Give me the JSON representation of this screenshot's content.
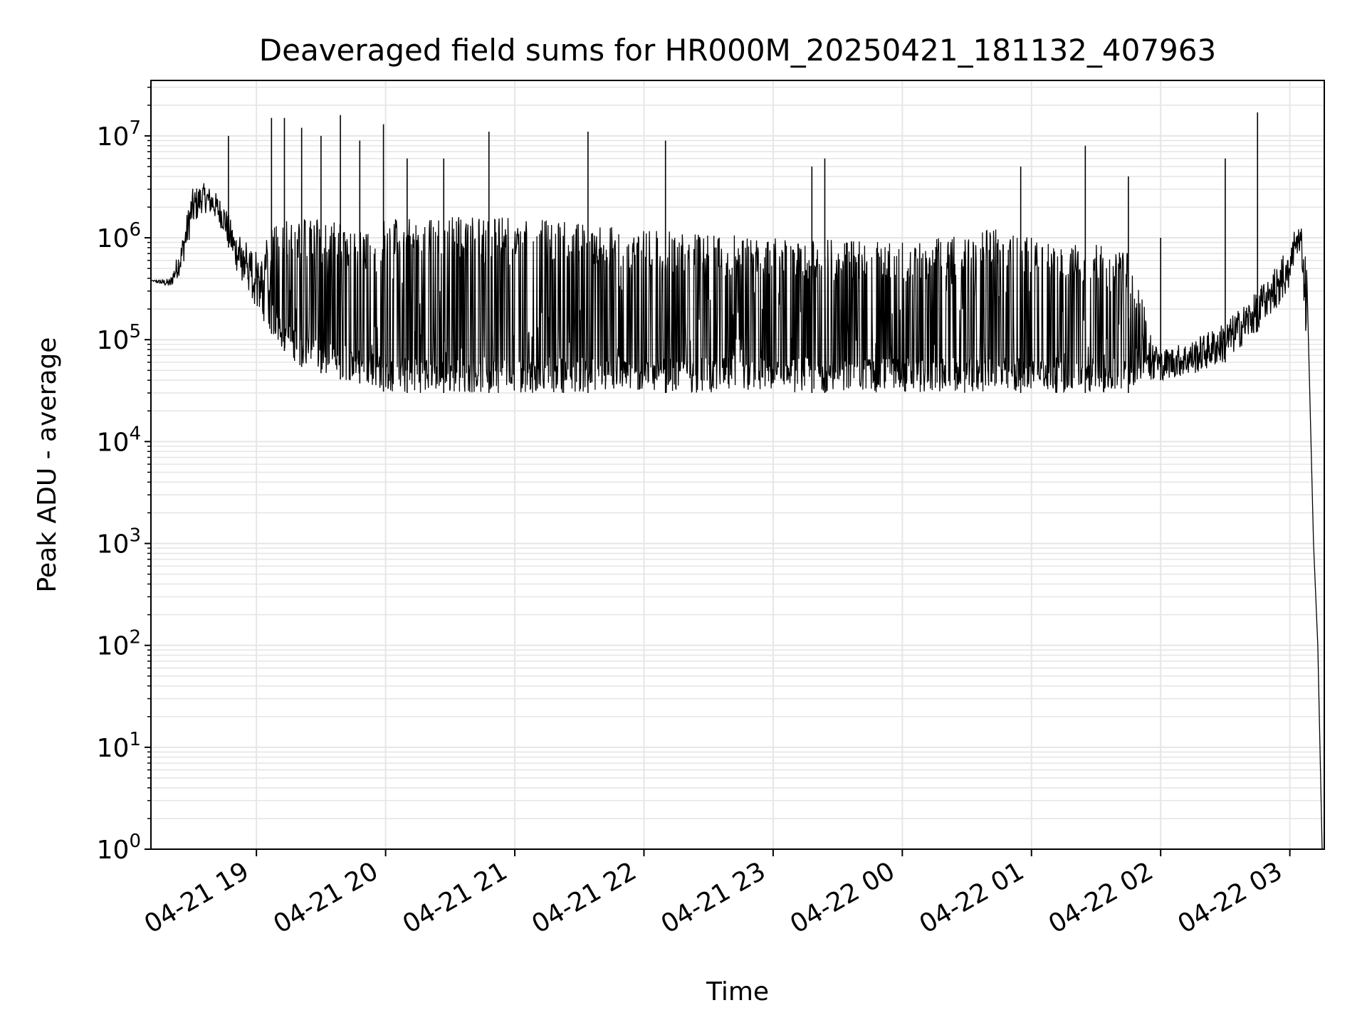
{
  "chart_data": {
    "type": "line",
    "title": "Deaveraged field sums for HR000M_20250421_181132_407963",
    "xlabel": "Time",
    "ylabel": "Peak ADU - average",
    "yscale": "log",
    "ylim": [
      1,
      35000000
    ],
    "xlim": [
      "2025-04-21 18:11",
      "2025-04-22 03:16"
    ],
    "x_ticks": [
      {
        "t": "2025-04-21 19:00",
        "label": "04-21 19"
      },
      {
        "t": "2025-04-21 20:00",
        "label": "04-21 20"
      },
      {
        "t": "2025-04-21 21:00",
        "label": "04-21 21"
      },
      {
        "t": "2025-04-21 22:00",
        "label": "04-21 22"
      },
      {
        "t": "2025-04-21 23:00",
        "label": "04-21 23"
      },
      {
        "t": "2025-04-22 00:00",
        "label": "04-22 00"
      },
      {
        "t": "2025-04-22 01:00",
        "label": "04-22 01"
      },
      {
        "t": "2025-04-22 02:00",
        "label": "04-22 02"
      },
      {
        "t": "2025-04-22 03:00",
        "label": "04-22 03"
      }
    ],
    "y_ticks": [
      {
        "value": 1,
        "base": "10",
        "exp": "0"
      },
      {
        "value": 10,
        "base": "10",
        "exp": "1"
      },
      {
        "value": 100,
        "base": "10",
        "exp": "2"
      },
      {
        "value": 1000,
        "base": "10",
        "exp": "3"
      },
      {
        "value": 10000,
        "base": "10",
        "exp": "4"
      },
      {
        "value": 100000,
        "base": "10",
        "exp": "5"
      },
      {
        "value": 1000000,
        "base": "10",
        "exp": "6"
      },
      {
        "value": 10000000,
        "base": "10",
        "exp": "7"
      }
    ],
    "grid": true,
    "line_color": "#000000",
    "grid_color": "#e6e6e6",
    "series": [
      {
        "envelope": {
          "x": [
            "2025-04-21 18:11",
            "2025-04-21 18:20",
            "2025-04-21 18:25",
            "2025-04-21 18:30",
            "2025-04-21 18:35",
            "2025-04-21 18:40",
            "2025-04-21 18:45",
            "2025-04-21 18:50",
            "2025-04-21 19:00",
            "2025-04-21 19:10",
            "2025-04-21 19:20",
            "2025-04-21 19:40",
            "2025-04-21 19:55",
            "2025-04-21 20:00",
            "2025-04-21 21:00",
            "2025-04-21 22:00",
            "2025-04-21 23:00",
            "2025-04-22 00:00",
            "2025-04-22 00:50",
            "2025-04-22 01:00",
            "2025-04-22 01:45",
            "2025-04-22 01:50",
            "2025-04-22 02:00",
            "2025-04-22 02:15",
            "2025-04-22 02:30",
            "2025-04-22 02:45",
            "2025-04-22 03:00",
            "2025-04-22 03:02",
            "2025-04-22 03:05",
            "2025-04-22 03:08",
            "2025-04-22 03:11",
            "2025-04-22 03:13",
            "2025-04-22 03:15"
          ],
          "base": [
            380000,
            320000,
            450000,
            1200000,
            1800000,
            1600000,
            1100000,
            500000,
            200000,
            90000,
            55000,
            40000,
            35000,
            30000,
            30000,
            30000,
            30000,
            30000,
            30000,
            30000,
            30000,
            40000,
            40000,
            45000,
            60000,
            120000,
            300000,
            600000,
            700000,
            60000,
            1000,
            100,
            1
          ],
          "top": [
            380000,
            400000,
            900000,
            3000000,
            3500000,
            3000000,
            2200000,
            1200000,
            800000,
            1500000,
            1500000,
            1500000,
            1000000,
            1600000,
            1600000,
            1200000,
            1000000,
            900000,
            1300000,
            1000000,
            800000,
            300000,
            80000,
            100000,
            150000,
            300000,
            900000,
            1200000,
            1300000,
            800000,
            1000,
            100,
            1
          ]
        },
        "peaks": [
          {
            "t": "2025-04-21 18:47",
            "value": 10000000
          },
          {
            "t": "2025-04-21 19:07",
            "value": 15000000
          },
          {
            "t": "2025-04-21 19:13",
            "value": 15000000
          },
          {
            "t": "2025-04-21 19:21",
            "value": 12000000
          },
          {
            "t": "2025-04-21 19:30",
            "value": 10000000
          },
          {
            "t": "2025-04-21 19:39",
            "value": 16000000
          },
          {
            "t": "2025-04-21 19:48",
            "value": 9000000
          },
          {
            "t": "2025-04-21 19:59",
            "value": 13000000
          },
          {
            "t": "2025-04-21 20:10",
            "value": 6000000
          },
          {
            "t": "2025-04-21 20:27",
            "value": 6000000
          },
          {
            "t": "2025-04-21 20:48",
            "value": 11000000
          },
          {
            "t": "2025-04-21 21:34",
            "value": 11000000
          },
          {
            "t": "2025-04-21 22:10",
            "value": 9000000
          },
          {
            "t": "2025-04-21 23:18",
            "value": 5000000
          },
          {
            "t": "2025-04-21 23:24",
            "value": 6000000
          },
          {
            "t": "2025-04-22 00:55",
            "value": 5000000
          },
          {
            "t": "2025-04-22 01:25",
            "value": 8000000
          },
          {
            "t": "2025-04-22 01:45",
            "value": 4000000
          },
          {
            "t": "2025-04-22 02:00",
            "value": 1000000
          },
          {
            "t": "2025-04-22 02:30",
            "value": 6000000
          },
          {
            "t": "2025-04-22 02:45",
            "value": 17000000
          }
        ]
      }
    ]
  }
}
